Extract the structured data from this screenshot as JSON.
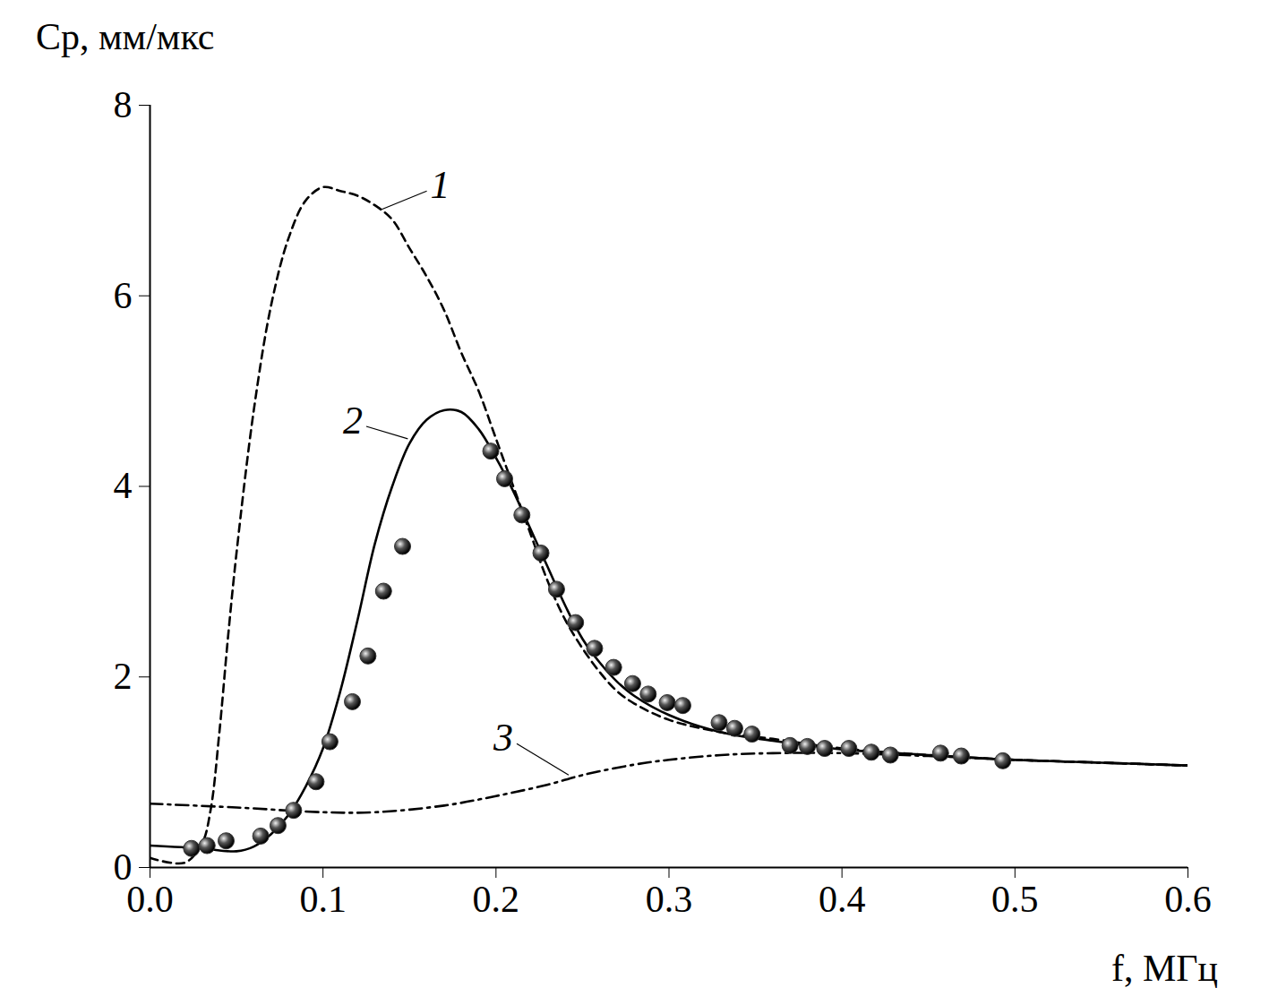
{
  "chart_data": {
    "type": "line",
    "x_label": "f, МГц",
    "y_label": "Cp, мм/мкс",
    "xlim": [
      0,
      0.6
    ],
    "ylim": [
      0,
      8
    ],
    "xticks": [
      {
        "value": 0,
        "label": "0.0"
      },
      0.1,
      0.2,
      0.3,
      0.4,
      0.5,
      0.6
    ],
    "yticks": [
      0,
      2,
      4,
      6,
      8
    ],
    "grid": false,
    "series": [
      {
        "type": "line",
        "line_style": "dashed",
        "color": "#000000",
        "x": [
          0,
          0.02,
          0.03,
          0.035,
          0.04,
          0.045,
          0.05,
          0.06,
          0.07,
          0.08,
          0.09,
          0.1,
          0.11,
          0.12,
          0.13,
          0.14,
          0.15,
          0.16,
          0.17,
          0.18,
          0.19,
          0.2,
          0.21,
          0.22,
          0.23,
          0.24,
          0.25,
          0.26,
          0.27,
          0.28,
          0.3,
          0.33,
          0.36,
          0.4,
          0.45,
          0.5,
          0.55,
          0.6
        ],
        "values": [
          0.1,
          0.05,
          0.25,
          0.6,
          1.4,
          2.4,
          3.3,
          4.8,
          5.9,
          6.6,
          7.0,
          7.14,
          7.1,
          7.05,
          6.95,
          6.8,
          6.5,
          6.2,
          5.85,
          5.4,
          5.0,
          4.5,
          4.0,
          3.5,
          3.0,
          2.6,
          2.3,
          2.05,
          1.85,
          1.72,
          1.55,
          1.42,
          1.35,
          1.25,
          1.18,
          1.13,
          1.1,
          1.07
        ]
      },
      {
        "type": "line",
        "line_style": "solid",
        "color": "#000000",
        "x": [
          0,
          0.03,
          0.05,
          0.06,
          0.07,
          0.08,
          0.09,
          0.1,
          0.11,
          0.12,
          0.13,
          0.14,
          0.15,
          0.16,
          0.17,
          0.18,
          0.19,
          0.2,
          0.21,
          0.22,
          0.23,
          0.24,
          0.25,
          0.26,
          0.27,
          0.28,
          0.3,
          0.33,
          0.36,
          0.4,
          0.45,
          0.5,
          0.55,
          0.6
        ],
        "values": [
          0.23,
          0.2,
          0.17,
          0.22,
          0.35,
          0.55,
          0.85,
          1.25,
          1.85,
          2.6,
          3.4,
          4.0,
          4.45,
          4.7,
          4.8,
          4.78,
          4.6,
          4.3,
          3.95,
          3.55,
          3.15,
          2.75,
          2.4,
          2.15,
          1.95,
          1.8,
          1.6,
          1.42,
          1.33,
          1.24,
          1.18,
          1.13,
          1.1,
          1.07
        ]
      },
      {
        "type": "line",
        "line_style": "dashdot",
        "color": "#000000",
        "x": [
          0,
          0.05,
          0.1,
          0.13,
          0.17,
          0.2,
          0.23,
          0.25,
          0.28,
          0.3,
          0.33,
          0.36,
          0.4,
          0.45,
          0.5,
          0.55,
          0.6
        ],
        "values": [
          0.67,
          0.63,
          0.58,
          0.58,
          0.65,
          0.75,
          0.87,
          0.97,
          1.08,
          1.13,
          1.18,
          1.2,
          1.2,
          1.17,
          1.13,
          1.1,
          1.07
        ]
      },
      {
        "type": "scatter",
        "marker": "circle",
        "color": "#333333",
        "x": [
          0.024,
          0.033,
          0.044,
          0.064,
          0.074,
          0.083,
          0.096,
          0.104,
          0.117,
          0.126,
          0.135,
          0.146,
          0.197,
          0.205,
          0.215,
          0.226,
          0.235,
          0.246,
          0.257,
          0.268,
          0.279,
          0.288,
          0.299,
          0.308,
          0.329,
          0.338,
          0.348,
          0.37,
          0.38,
          0.39,
          0.404,
          0.417,
          0.428,
          0.457,
          0.469,
          0.493
        ],
        "values": [
          0.2,
          0.23,
          0.28,
          0.33,
          0.44,
          0.6,
          0.9,
          1.32,
          1.74,
          2.22,
          2.9,
          3.37,
          4.37,
          4.08,
          3.7,
          3.3,
          2.92,
          2.57,
          2.3,
          2.1,
          1.93,
          1.82,
          1.73,
          1.7,
          1.52,
          1.46,
          1.4,
          1.28,
          1.27,
          1.25,
          1.25,
          1.21,
          1.18,
          1.2,
          1.17,
          1.12
        ]
      }
    ],
    "annotations": [
      {
        "text": "1",
        "x": 0.16,
        "y": 7.1,
        "line_to": [
          0.133,
          6.9
        ]
      },
      {
        "text": "2",
        "x": 0.125,
        "y": 4.63,
        "line_to": [
          0.149,
          4.5
        ]
      },
      {
        "text": "3",
        "x": 0.212,
        "y": 1.3,
        "line_to": [
          0.242,
          0.97
        ]
      }
    ]
  }
}
